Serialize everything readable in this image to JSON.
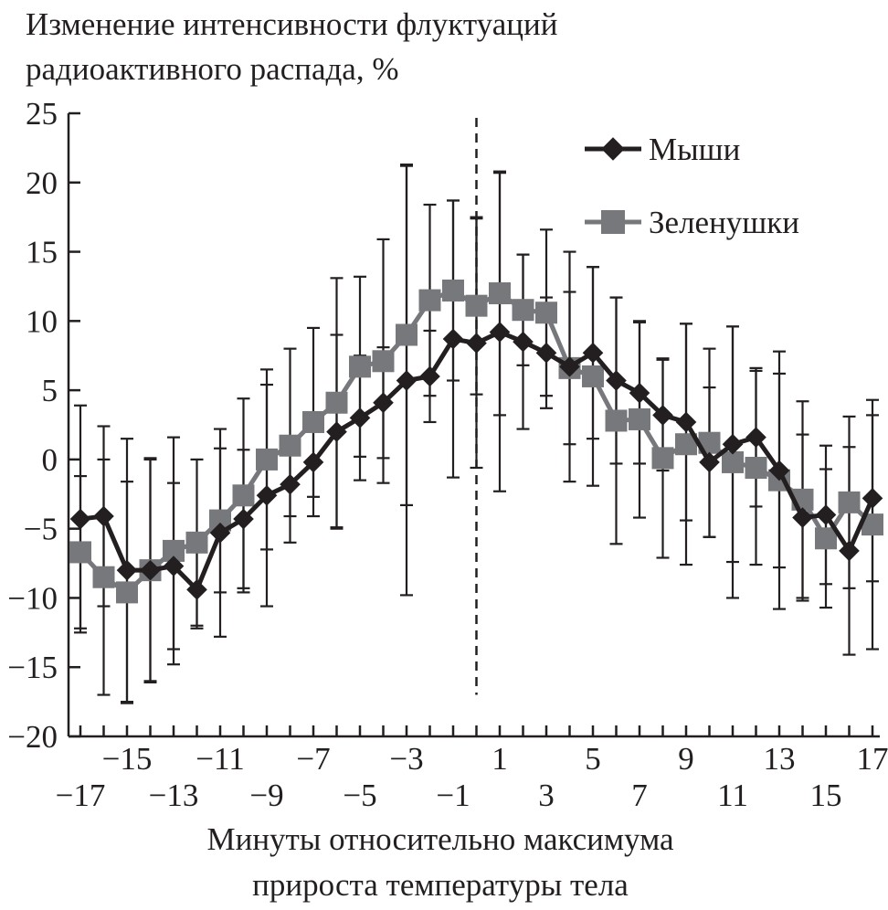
{
  "chart_data": {
    "type": "line",
    "title": [
      "Изменение интенсивности флуктуаций",
      "радиоактивного распада, %"
    ],
    "xlabel": [
      "Минуты относительно максимума",
      "прироста температуры тела"
    ],
    "ylabel": "Изменение интенсивности флуктуаций радиоактивного распада, %",
    "ylim": [
      -20,
      25
    ],
    "yticks": [
      25,
      20,
      15,
      10,
      5,
      0,
      -5,
      -10,
      -15,
      -20
    ],
    "xlim": [
      -17,
      17
    ],
    "xticks_upper": [
      "-15",
      "-11",
      "-7",
      "-3",
      "1",
      "5",
      "9",
      "13",
      "17"
    ],
    "xticks_lower": [
      "-17",
      "-13",
      "-9",
      "-5",
      "-1",
      "3",
      "7",
      "11",
      "15"
    ],
    "x": [
      -17,
      -16,
      -15,
      -14,
      -13,
      -12,
      -11,
      -10,
      -9,
      -8,
      -7,
      -6,
      -5,
      -4,
      -3,
      -2,
      -1,
      0,
      1,
      2,
      3,
      4,
      5,
      6,
      7,
      8,
      9,
      10,
      11,
      12,
      13,
      14,
      15,
      16,
      17
    ],
    "reference_line_x": 0,
    "legend_position": "top-right",
    "series": [
      {
        "name": "Мыши",
        "color": "#231f20",
        "marker": "diamond",
        "values": [
          -4.3,
          -4.1,
          -8.0,
          -8.0,
          -7.7,
          -9.4,
          -5.3,
          -4.3,
          -2.6,
          -1.8,
          -0.2,
          2.0,
          3.0,
          4.1,
          5.7,
          6.0,
          8.7,
          8.4,
          9.2,
          8.5,
          7.7,
          6.7,
          7.7,
          5.7,
          4.8,
          3.2,
          2.7,
          -0.2,
          1.1,
          1.6,
          -0.8,
          -4.2,
          -4.0,
          -6.6,
          -2.8
        ],
        "errors": [
          8.2,
          6.5,
          9.5,
          8.0,
          6.0,
          2.8,
          7.5,
          5.0,
          8.0,
          2.3,
          2.5,
          7.0,
          4.5,
          4.0,
          15.5,
          3.3,
          10.0,
          9.0,
          11.5,
          6.3,
          4.0,
          8.3,
          6.2,
          6.0,
          5.1,
          4.0,
          7.1,
          5.4,
          8.5,
          5.0,
          7.0,
          6.0,
          5.0,
          7.5,
          6.0
        ]
      },
      {
        "name": "Зеленушки",
        "color": "#77787b",
        "marker": "square",
        "values": [
          -6.7,
          -8.5,
          -9.6,
          -8.0,
          -6.6,
          -6.0,
          -4.4,
          -2.6,
          0.0,
          1.0,
          2.7,
          4.1,
          6.7,
          7.1,
          9.0,
          11.5,
          12.2,
          11.1,
          12.0,
          10.8,
          10.6,
          6.6,
          6.0,
          2.8,
          2.9,
          0.1,
          1.1,
          1.2,
          -0.2,
          -0.6,
          -1.5,
          -2.9,
          -5.7,
          -3.1,
          -4.7
        ],
        "errors": [
          5.5,
          8.5,
          8.0,
          8.1,
          8.2,
          6.0,
          5.2,
          7.0,
          6.5,
          7.0,
          6.8,
          9.0,
          6.5,
          8.8,
          12.3,
          6.9,
          6.5,
          6.4,
          8.8,
          4.0,
          6.0,
          5.5,
          7.9,
          8.9,
          7.1,
          7.2,
          8.7,
          6.8,
          9.8,
          7.0,
          9.3,
          7.1,
          5.0,
          6.2,
          9.0
        ]
      }
    ]
  }
}
